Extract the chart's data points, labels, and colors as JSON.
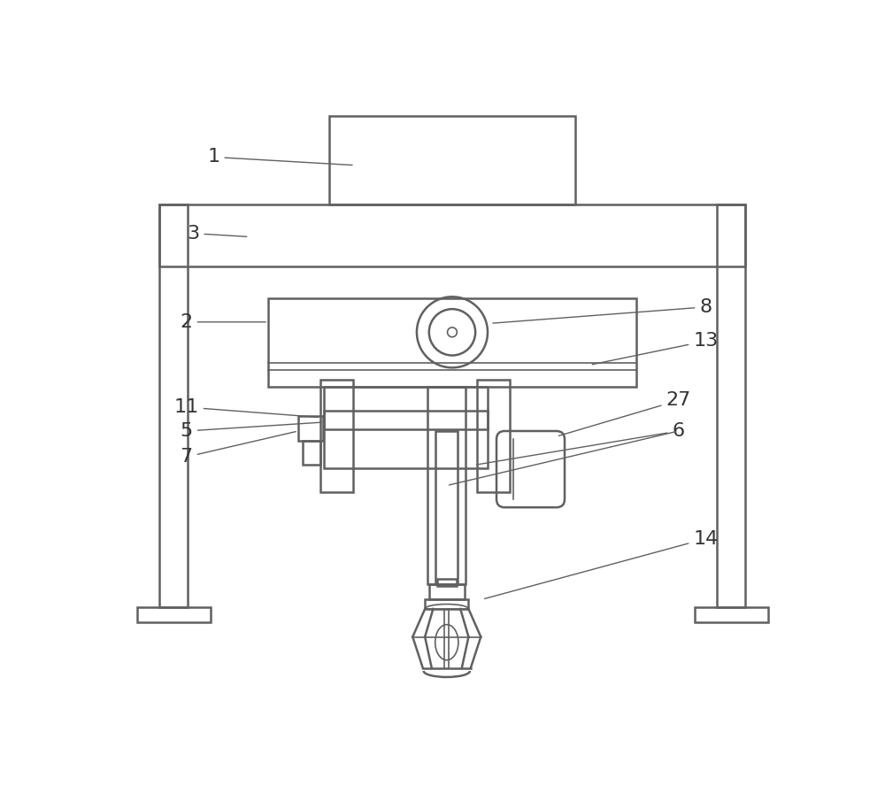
{
  "bg_color": "#ffffff",
  "lc": "#606060",
  "lw": 1.8,
  "tlw": 1.2
}
